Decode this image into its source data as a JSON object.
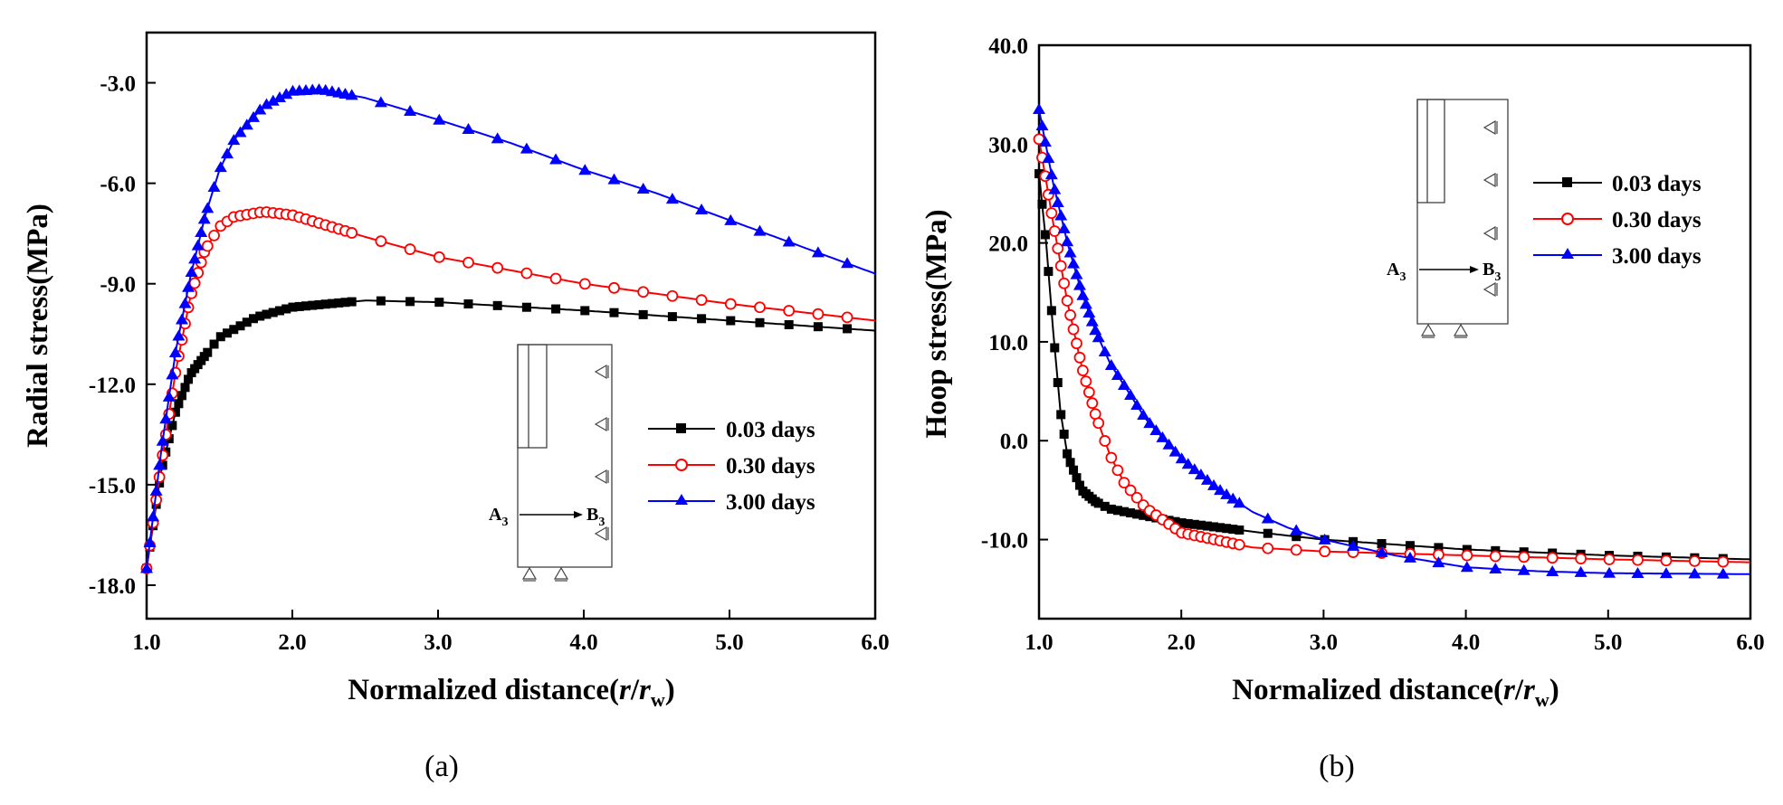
{
  "chart_data": [
    {
      "panel": "a",
      "type": "line",
      "caption": "(a)",
      "xlabel": "Normalized distance(r/rw)",
      "xlabel_parts": {
        "prefix": "Normalized distance(",
        "r": "r",
        "slash": "/",
        "rw": "r",
        "sub": "w",
        "suffix": ")"
      },
      "ylabel": "Radial stress(MPa)",
      "xlim": [
        1.0,
        6.0
      ],
      "ylim": [
        -19.0,
        -1.5
      ],
      "xticks": [
        1.0,
        2.0,
        3.0,
        4.0,
        5.0,
        6.0
      ],
      "xtick_labels": [
        "1.0",
        "2.0",
        "3.0",
        "4.0",
        "5.0",
        "6.0"
      ],
      "yticks": [
        -18.0,
        -15.0,
        -12.0,
        -9.0,
        -6.0,
        -3.0
      ],
      "ytick_labels": [
        "-18.0",
        "-15.0",
        "-12.0",
        "-9.0",
        "-6.0",
        "-3.0"
      ],
      "legend_position": "center-right",
      "series": [
        {
          "name": "0.03 days",
          "color": "#000000",
          "marker": "square",
          "x": [
            1.0,
            1.1,
            1.2,
            1.3,
            1.5,
            1.75,
            2.0,
            2.5,
            3.0,
            4.0,
            5.0,
            6.0
          ],
          "y": [
            -17.5,
            -14.6,
            -12.8,
            -11.7,
            -10.6,
            -10.0,
            -9.7,
            -9.5,
            -9.55,
            -9.8,
            -10.1,
            -10.4
          ]
        },
        {
          "name": "0.30 days",
          "color": "#ff0000",
          "marker": "circle-open",
          "x": [
            1.0,
            1.1,
            1.2,
            1.3,
            1.4,
            1.5,
            1.6,
            1.8,
            2.0,
            2.5,
            3.0,
            4.0,
            5.0,
            6.0
          ],
          "y": [
            -17.5,
            -14.4,
            -11.6,
            -9.4,
            -8.0,
            -7.3,
            -7.0,
            -6.85,
            -6.95,
            -7.6,
            -8.2,
            -9.0,
            -9.6,
            -10.1
          ]
        },
        {
          "name": "3.00 days",
          "color": "#0000ff",
          "marker": "triangle",
          "x": [
            1.0,
            1.1,
            1.2,
            1.3,
            1.4,
            1.5,
            1.6,
            1.8,
            2.0,
            2.2,
            2.5,
            3.0,
            3.5,
            4.0,
            4.5,
            5.0,
            5.5,
            6.0
          ],
          "y": [
            -17.5,
            -14.0,
            -11.0,
            -8.8,
            -7.0,
            -5.6,
            -4.7,
            -3.7,
            -3.25,
            -3.2,
            -3.45,
            -4.1,
            -4.8,
            -5.6,
            -6.3,
            -7.1,
            -7.9,
            -8.7
          ]
        }
      ],
      "inset": {
        "label_a": "A",
        "label_a_sub": "3",
        "label_b": "B",
        "label_b_sub": "3"
      }
    },
    {
      "panel": "b",
      "type": "line",
      "caption": "(b)",
      "xlabel": "Normalized distance(r/rw)",
      "xlabel_parts": {
        "prefix": "Normalized distance(",
        "r": "r",
        "slash": "/",
        "rw": "r",
        "sub": "w",
        "suffix": ")"
      },
      "ylabel": "Hoop stress(MPa)",
      "xlim": [
        1.0,
        6.0
      ],
      "ylim": [
        -18.0,
        40.0
      ],
      "xticks": [
        1.0,
        2.0,
        3.0,
        4.0,
        5.0,
        6.0
      ],
      "xtick_labels": [
        "1.0",
        "2.0",
        "3.0",
        "4.0",
        "5.0",
        "6.0"
      ],
      "yticks": [
        -10.0,
        0.0,
        10.0,
        20.0,
        30.0,
        40.0
      ],
      "ytick_labels": [
        "-10.0",
        "0.0",
        "10.0",
        "20.0",
        "30.0",
        "40.0"
      ],
      "legend_position": "top-right",
      "series": [
        {
          "name": "0.03 days",
          "color": "#000000",
          "marker": "square",
          "x": [
            1.0,
            1.05,
            1.1,
            1.15,
            1.2,
            1.3,
            1.4,
            1.5,
            1.75,
            2.0,
            2.5,
            3.0,
            4.0,
            5.0,
            6.0
          ],
          "y": [
            27.0,
            20.0,
            11.0,
            3.0,
            -1.5,
            -5.0,
            -6.2,
            -6.9,
            -7.6,
            -8.3,
            -9.2,
            -10.0,
            -11.0,
            -11.6,
            -12.0
          ]
        },
        {
          "name": "0.30 days",
          "color": "#ff0000",
          "marker": "circle-open",
          "x": [
            1.0,
            1.1,
            1.2,
            1.3,
            1.4,
            1.5,
            1.6,
            1.75,
            2.0,
            2.5,
            3.0,
            3.5,
            4.0,
            5.0,
            6.0
          ],
          "y": [
            30.5,
            22.0,
            14.0,
            7.5,
            2.5,
            -1.5,
            -4.3,
            -6.8,
            -9.3,
            -10.8,
            -11.2,
            -11.4,
            -11.6,
            -12.0,
            -12.3
          ]
        },
        {
          "name": "3.00 days",
          "color": "#0000ff",
          "marker": "triangle",
          "x": [
            1.0,
            1.1,
            1.2,
            1.3,
            1.4,
            1.5,
            1.75,
            2.0,
            2.25,
            2.5,
            2.75,
            3.0,
            3.5,
            4.0,
            4.5,
            5.0,
            6.0
          ],
          "y": [
            33.5,
            26.0,
            20.0,
            15.0,
            11.0,
            7.8,
            2.2,
            -1.8,
            -4.8,
            -7.2,
            -8.8,
            -10.0,
            -11.6,
            -12.8,
            -13.2,
            -13.4,
            -13.5
          ]
        }
      ],
      "inset": {
        "label_a": "A",
        "label_a_sub": "3",
        "label_b": "B",
        "label_b_sub": "3"
      }
    }
  ]
}
